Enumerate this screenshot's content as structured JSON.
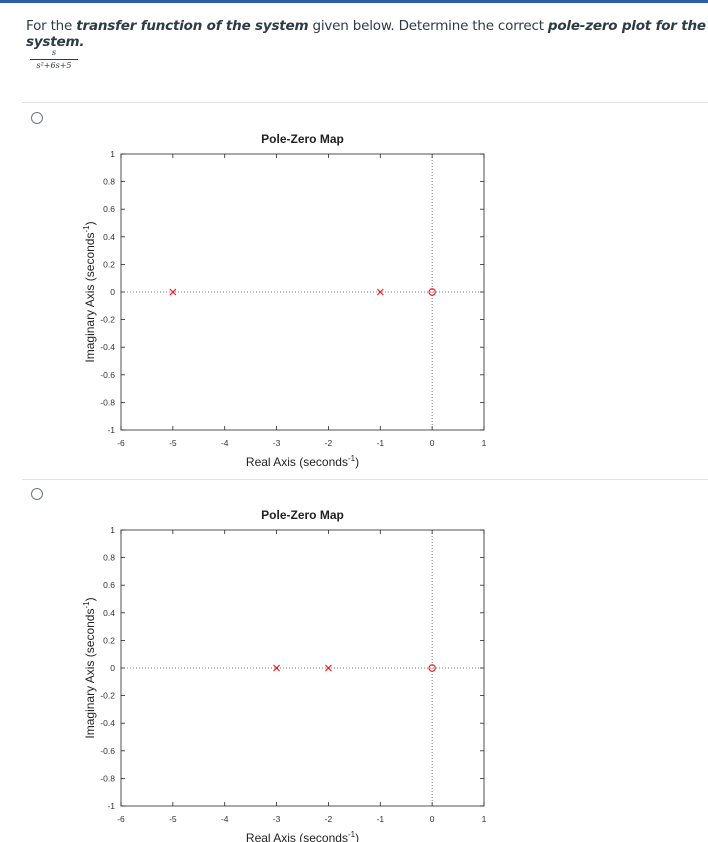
{
  "question": {
    "prefix": "For the ",
    "bold1": "transfer function of the system",
    "middle": " given below. Determine the correct ",
    "bold2": "pole-zero plot for the system.",
    "tf_numerator": "s",
    "tf_denominator": "s²+6s+5"
  },
  "options": [
    {
      "selected": false,
      "chart_data": {
        "type": "scatter",
        "title": "Pole-Zero Map",
        "xlabel": "Real Axis (seconds",
        "xlabel_sup": "-1",
        "ylabel": "Imaginary Axis (seconds",
        "ylabel_sup": "-1",
        "xlim": [
          -6,
          1
        ],
        "ylim": [
          -1,
          1
        ],
        "xticks": [
          "-6",
          "-5",
          "-4",
          "-3",
          "-2",
          "-1",
          "0",
          "1"
        ],
        "yticks": [
          "1",
          "0.8",
          "0.6",
          "0.4",
          "0.2",
          "0",
          "-0.2",
          "-0.4",
          "-0.6",
          "-0.8",
          "-1"
        ],
        "poles": [
          {
            "re": -5,
            "im": 0
          },
          {
            "re": -1,
            "im": 0
          }
        ],
        "zeros": [
          {
            "re": 0,
            "im": 0
          }
        ],
        "marker_color": "#ff0000",
        "grid": false
      }
    },
    {
      "selected": false,
      "chart_data": {
        "type": "scatter",
        "title": "Pole-Zero Map",
        "xlabel": "Real Axis (seconds",
        "xlabel_sup": "-1",
        "ylabel": "Imaginary Axis (seconds",
        "ylabel_sup": "-1",
        "xlim": [
          -6,
          1
        ],
        "ylim": [
          -1,
          1
        ],
        "xticks": [
          "-6",
          "-5",
          "-4",
          "-3",
          "-2",
          "-1",
          "0",
          "1"
        ],
        "yticks": [
          "1",
          "0.8",
          "0.6",
          "0.4",
          "0.2",
          "0",
          "-0.2",
          "-0.4",
          "-0.6",
          "-0.8",
          "-1"
        ],
        "poles": [
          {
            "re": -3,
            "im": 0
          },
          {
            "re": -2,
            "im": 0
          }
        ],
        "zeros": [
          {
            "re": 0,
            "im": 0
          }
        ],
        "marker_color": "#ff0000",
        "grid": false
      }
    }
  ]
}
